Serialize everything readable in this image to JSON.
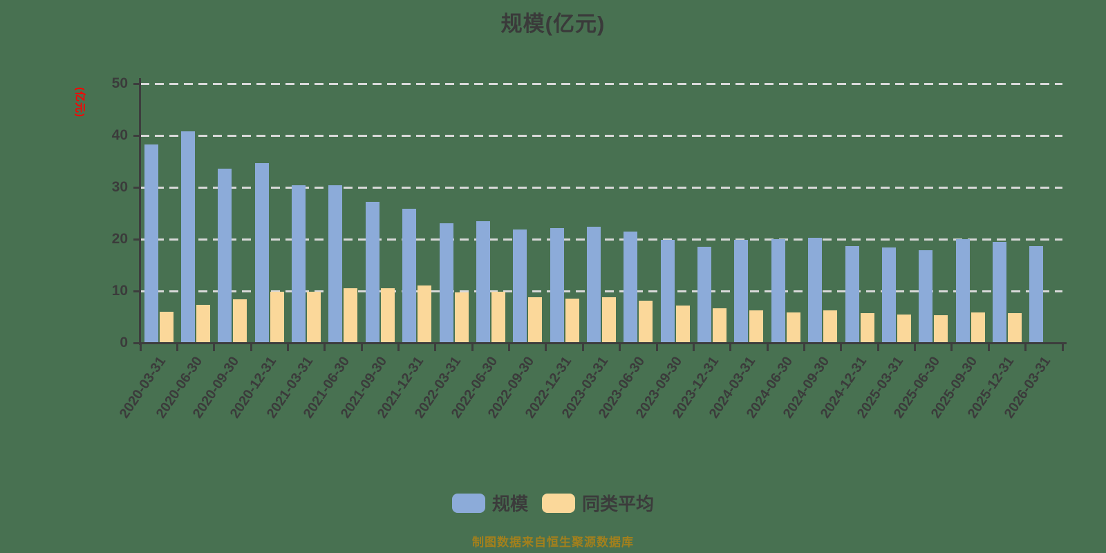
{
  "title": "规模(亿元)",
  "y_axis_name": "(亿元)",
  "footer": "制图数据来自恒生聚源数据库",
  "colors": {
    "background": "#487151",
    "scale_bar": "#8CABD9",
    "average_bar": "#FBD89A",
    "gridline": "#d9d9d9",
    "axis": "#3d3d3d",
    "text": "#3b3b3b",
    "y_name_red": "#fe0000",
    "footer_gold": "#a3801c"
  },
  "chart_data": {
    "type": "bar",
    "title": "规模(亿元)",
    "xlabel": "",
    "ylabel": "(亿元)",
    "ylim": [
      0,
      50
    ],
    "y_ticks": [
      0,
      10,
      20,
      30,
      40,
      50
    ],
    "grid": true,
    "legend_position": "bottom",
    "categories": [
      "2020-03-31",
      "2020-06-30",
      "2020-09-30",
      "2020-12-31",
      "2021-03-31",
      "2021-06-30",
      "2021-09-30",
      "2021-12-31",
      "2022-03-31",
      "2022-06-30",
      "2022-09-30",
      "2022-12-31",
      "2023-03-31",
      "2023-06-30",
      "2023-09-30",
      "2023-12-31",
      "2024-03-31",
      "2024-06-30",
      "2024-09-30",
      "2024-12-31",
      "2025-03-31",
      "2025-06-30",
      "2025-09-30",
      "2025-12-31",
      "2026-03-31"
    ],
    "series": [
      {
        "name": "规模",
        "color": "#8CABD9",
        "values": [
          38.1,
          40.7,
          33.5,
          34.6,
          30.3,
          30.3,
          27.1,
          25.7,
          23.0,
          23.4,
          21.8,
          22.0,
          22.3,
          21.3,
          19.8,
          18.4,
          19.7,
          19.9,
          20.1,
          18.5,
          18.3,
          17.8,
          19.9,
          19.3,
          18.5
        ]
      },
      {
        "name": "同类平均",
        "color": "#FBD89A",
        "values": [
          5.9,
          7.2,
          8.3,
          9.7,
          9.7,
          10.4,
          10.4,
          11.0,
          9.6,
          9.8,
          8.7,
          8.4,
          8.7,
          8.0,
          7.1,
          6.6,
          6.2,
          5.8,
          6.1,
          5.6,
          5.4,
          5.2,
          5.8,
          5.6,
          null
        ]
      }
    ]
  }
}
